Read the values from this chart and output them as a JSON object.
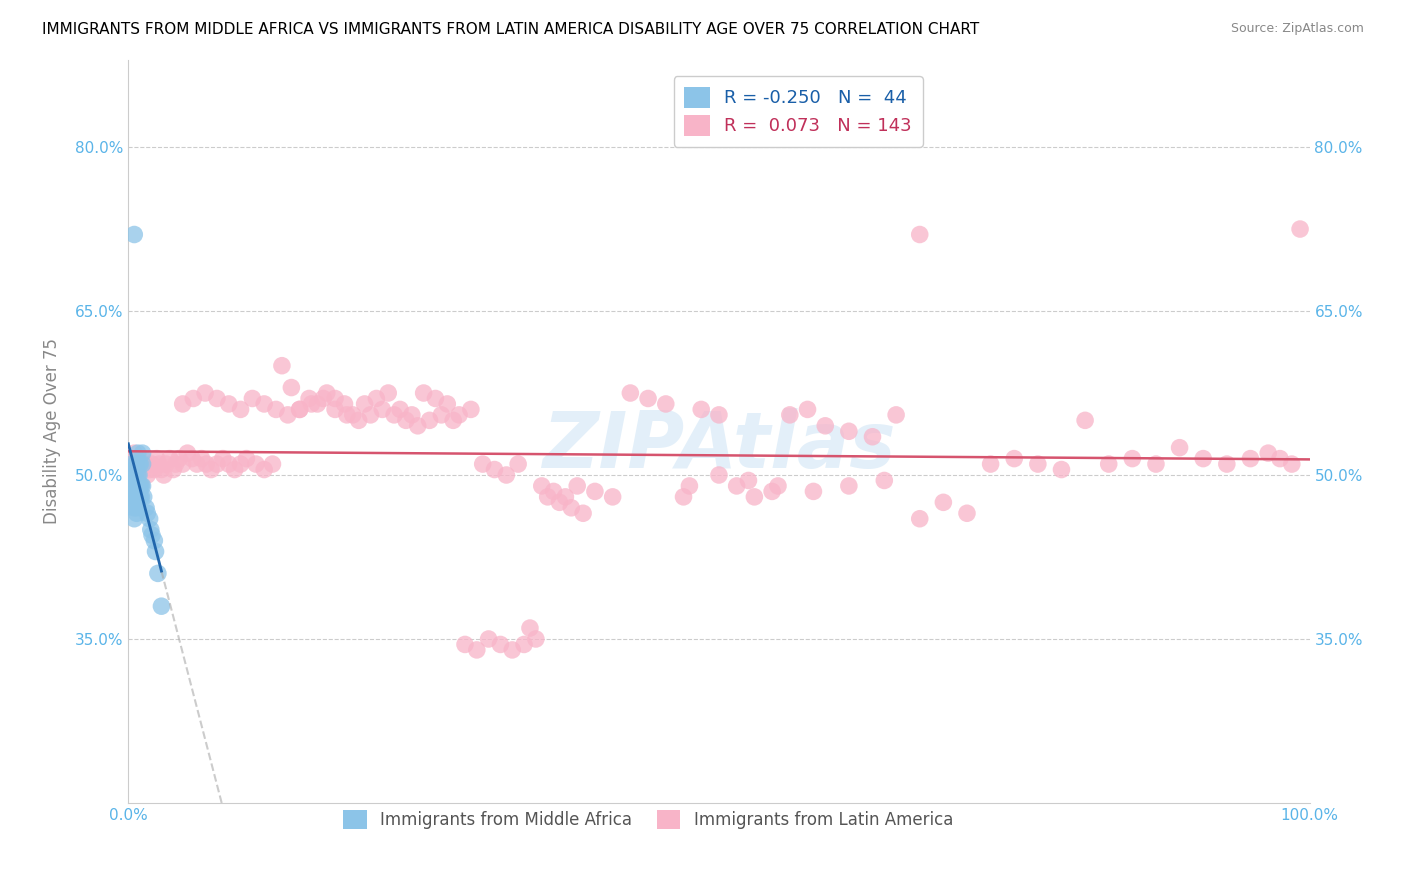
{
  "title": "IMMIGRANTS FROM MIDDLE AFRICA VS IMMIGRANTS FROM LATIN AMERICA DISABILITY AGE OVER 75 CORRELATION CHART",
  "source": "Source: ZipAtlas.com",
  "ylabel": "Disability Age Over 75",
  "xlim": [
    0.0,
    1.0
  ],
  "ylim": [
    0.2,
    0.88
  ],
  "yticks": [
    0.35,
    0.5,
    0.65,
    0.8
  ],
  "ytick_labels": [
    "35.0%",
    "50.0%",
    "65.0%",
    "80.0%"
  ],
  "color_blue": "#8cc4e8",
  "color_pink": "#f8b4c8",
  "color_blue_line": "#2166ac",
  "color_pink_line": "#d6546e",
  "watermark": "ZIPAtlas",
  "blue_r": "-0.250",
  "blue_n": "44",
  "pink_r": "0.073",
  "pink_n": "143",
  "legend_label_blue": "Immigrants from Middle Africa",
  "legend_label_pink": "Immigrants from Latin America",
  "blue_points_x": [
    0.002,
    0.003,
    0.003,
    0.004,
    0.004,
    0.004,
    0.005,
    0.005,
    0.005,
    0.005,
    0.006,
    0.006,
    0.006,
    0.006,
    0.006,
    0.007,
    0.007,
    0.007,
    0.007,
    0.008,
    0.008,
    0.008,
    0.008,
    0.009,
    0.009,
    0.009,
    0.01,
    0.01,
    0.01,
    0.011,
    0.011,
    0.012,
    0.012,
    0.012,
    0.013,
    0.015,
    0.016,
    0.018,
    0.019,
    0.02,
    0.022,
    0.023,
    0.025,
    0.028
  ],
  "blue_points_y": [
    0.5,
    0.51,
    0.495,
    0.49,
    0.48,
    0.505,
    0.5,
    0.46,
    0.47,
    0.72,
    0.51,
    0.5,
    0.485,
    0.48,
    0.475,
    0.51,
    0.495,
    0.47,
    0.465,
    0.52,
    0.5,
    0.49,
    0.48,
    0.51,
    0.5,
    0.49,
    0.51,
    0.49,
    0.48,
    0.49,
    0.48,
    0.52,
    0.51,
    0.49,
    0.48,
    0.47,
    0.465,
    0.46,
    0.45,
    0.445,
    0.44,
    0.43,
    0.41,
    0.38
  ],
  "pink_points_x": [
    0.003,
    0.005,
    0.007,
    0.008,
    0.01,
    0.012,
    0.014,
    0.016,
    0.018,
    0.02,
    0.022,
    0.024,
    0.026,
    0.028,
    0.03,
    0.032,
    0.035,
    0.038,
    0.04,
    0.043,
    0.046,
    0.05,
    0.054,
    0.058,
    0.062,
    0.066,
    0.07,
    0.075,
    0.08,
    0.085,
    0.09,
    0.095,
    0.1,
    0.108,
    0.115,
    0.122,
    0.13,
    0.138,
    0.145,
    0.153,
    0.16,
    0.168,
    0.175,
    0.183,
    0.19,
    0.2,
    0.21,
    0.22,
    0.23,
    0.24,
    0.25,
    0.26,
    0.27,
    0.28,
    0.29,
    0.3,
    0.31,
    0.32,
    0.33,
    0.34,
    0.35,
    0.36,
    0.37,
    0.38,
    0.395,
    0.41,
    0.425,
    0.44,
    0.455,
    0.47,
    0.485,
    0.5,
    0.515,
    0.53,
    0.545,
    0.56,
    0.575,
    0.59,
    0.61,
    0.63,
    0.65,
    0.67,
    0.69,
    0.71,
    0.73,
    0.75,
    0.77,
    0.79,
    0.81,
    0.83,
    0.85,
    0.87,
    0.89,
    0.91,
    0.93,
    0.95,
    0.965,
    0.975,
    0.985,
    0.992,
    0.046,
    0.055,
    0.065,
    0.075,
    0.085,
    0.095,
    0.105,
    0.115,
    0.125,
    0.135,
    0.145,
    0.155,
    0.165,
    0.175,
    0.185,
    0.195,
    0.205,
    0.215,
    0.225,
    0.235,
    0.245,
    0.255,
    0.265,
    0.275,
    0.285,
    0.295,
    0.305,
    0.315,
    0.325,
    0.335,
    0.345,
    0.355,
    0.365,
    0.375,
    0.385,
    0.475,
    0.5,
    0.525,
    0.55,
    0.58,
    0.61,
    0.64,
    0.67
  ],
  "pink_points_y": [
    0.51,
    0.52,
    0.515,
    0.505,
    0.51,
    0.515,
    0.51,
    0.5,
    0.505,
    0.51,
    0.505,
    0.515,
    0.51,
    0.505,
    0.5,
    0.51,
    0.515,
    0.505,
    0.51,
    0.515,
    0.51,
    0.52,
    0.515,
    0.51,
    0.515,
    0.51,
    0.505,
    0.51,
    0.515,
    0.51,
    0.505,
    0.51,
    0.515,
    0.51,
    0.505,
    0.51,
    0.6,
    0.58,
    0.56,
    0.57,
    0.565,
    0.575,
    0.57,
    0.565,
    0.555,
    0.565,
    0.57,
    0.575,
    0.56,
    0.555,
    0.575,
    0.57,
    0.565,
    0.555,
    0.56,
    0.51,
    0.505,
    0.5,
    0.51,
    0.36,
    0.49,
    0.485,
    0.48,
    0.49,
    0.485,
    0.48,
    0.575,
    0.57,
    0.565,
    0.48,
    0.56,
    0.555,
    0.49,
    0.48,
    0.485,
    0.555,
    0.56,
    0.545,
    0.54,
    0.535,
    0.555,
    0.46,
    0.475,
    0.465,
    0.51,
    0.515,
    0.51,
    0.505,
    0.55,
    0.51,
    0.515,
    0.51,
    0.525,
    0.515,
    0.51,
    0.515,
    0.52,
    0.515,
    0.51,
    0.725,
    0.565,
    0.57,
    0.575,
    0.57,
    0.565,
    0.56,
    0.57,
    0.565,
    0.56,
    0.555,
    0.56,
    0.565,
    0.57,
    0.56,
    0.555,
    0.55,
    0.555,
    0.56,
    0.555,
    0.55,
    0.545,
    0.55,
    0.555,
    0.55,
    0.345,
    0.34,
    0.35,
    0.345,
    0.34,
    0.345,
    0.35,
    0.48,
    0.475,
    0.47,
    0.465,
    0.49,
    0.5,
    0.495,
    0.49,
    0.485,
    0.49,
    0.495,
    0.72
  ]
}
